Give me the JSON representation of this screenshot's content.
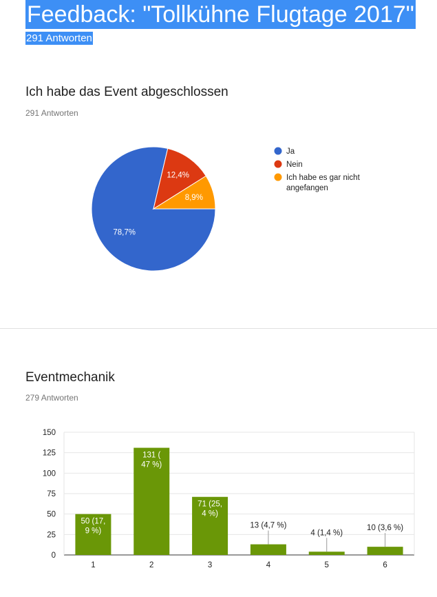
{
  "header": {
    "title": "Feedback: \"Tollkühne Flugtage 2017\"",
    "subtitle": "291 Antworten"
  },
  "questions": [
    {
      "title": "Ich habe das Event abgeschlossen",
      "count": "291 Antworten"
    },
    {
      "title": "Eventmechanik",
      "count": "279 Antworten"
    }
  ],
  "chart_data": [
    {
      "type": "pie",
      "slices": [
        {
          "name": "Ja",
          "value": 78.7,
          "label": "78,7%",
          "color": "#3366cc"
        },
        {
          "name": "Nein",
          "value": 12.4,
          "label": "12,4%",
          "color": "#dc3912"
        },
        {
          "name": "Ich habe es gar nicht angefangen",
          "value": 8.9,
          "label": "8,9%",
          "color": "#ff9900"
        }
      ],
      "legend_lines": [
        [
          "Ja"
        ],
        [
          "Nein"
        ],
        [
          "Ich habe es gar nicht",
          "angefangen"
        ]
      ],
      "legend_position": "right"
    },
    {
      "type": "bar",
      "categories": [
        "1",
        "2",
        "3",
        "4",
        "5",
        "6"
      ],
      "values": [
        50,
        131,
        71,
        13,
        4,
        10
      ],
      "labels": [
        [
          "50 (17,",
          "9 %)"
        ],
        [
          "131 (",
          "47 %)"
        ],
        [
          "71 (25,",
          "4 %)"
        ],
        [
          "13 (4,7 %)"
        ],
        [
          "4 (1,4 %)"
        ],
        [
          "10 (3,6 %)"
        ]
      ],
      "yticks": [
        "0",
        "25",
        "50",
        "75",
        "100",
        "125",
        "150"
      ],
      "ylim": [
        0,
        150
      ],
      "color": "#6a9707",
      "grid": true
    }
  ]
}
